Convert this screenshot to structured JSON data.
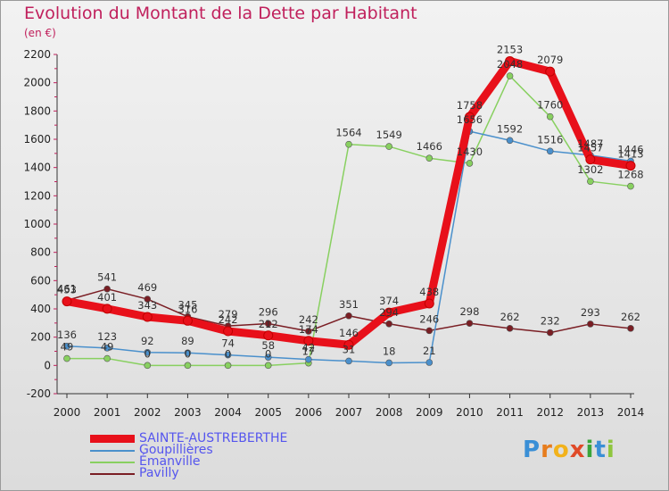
{
  "title": "Evolution du Montant de la Dette par Habitant",
  "unit": "(en €)",
  "brand": {
    "letters": [
      "P",
      "r",
      "o",
      "x",
      "i",
      "t",
      "i"
    ],
    "colors": [
      "#3a8fd6",
      "#e77d1e",
      "#f2b21b",
      "#e04a28",
      "#3aa53a",
      "#3a8fd6",
      "#8fc63f"
    ]
  },
  "chart_data": {
    "type": "line",
    "x": [
      "2000",
      "2001",
      "2002",
      "2003",
      "2004",
      "2005",
      "2006",
      "2007",
      "2008",
      "2009",
      "2010",
      "2011",
      "2012",
      "2013",
      "2014"
    ],
    "ylim": [
      -200,
      2200
    ],
    "yticks": [
      "-200",
      "0",
      "200",
      "400",
      "600",
      "800",
      "1000",
      "1200",
      "1400",
      "1600",
      "1800",
      "2000",
      "2200"
    ],
    "grid": false,
    "legend": "bottom-left",
    "series": [
      {
        "name": "SAINTE-AUSTREBERTHE",
        "color": "#e8101a",
        "values": [
          453,
          401,
          343,
          316,
          242,
          212,
          174,
          146,
          374,
          438,
          1758,
          2153,
          2079,
          1457,
          1413
        ],
        "labels": [
          "453",
          "401",
          "343",
          "316",
          "242",
          "212",
          "174",
          "146",
          "374",
          "438",
          "1758",
          "2153",
          "2079",
          "1457",
          "1413"
        ]
      },
      {
        "name": "Goupillières",
        "color": "#4a90cc",
        "values": [
          136,
          123,
          92,
          89,
          74,
          58,
          42,
          31,
          18,
          21,
          1656,
          1592,
          1516,
          1487,
          1446
        ],
        "labels": [
          "136",
          "123",
          "92",
          "89",
          "74",
          "58",
          "42",
          "31",
          "18",
          "21",
          "1656",
          "1592",
          "1516",
          "1487",
          "1446"
        ]
      },
      {
        "name": "Émanville",
        "color": "#88d060",
        "values": [
          49,
          49,
          0,
          0,
          0,
          0,
          17,
          1564,
          1549,
          1466,
          1430,
          2048,
          1760,
          1302,
          1268
        ],
        "labels": [
          "49",
          "49",
          "0",
          "0",
          "0",
          "0",
          "17",
          "1564",
          "1549",
          "1466",
          "1430",
          "2048",
          "1760",
          "1302",
          "1268"
        ]
      },
      {
        "name": "Pavilly",
        "color": "#7a1e24",
        "values": [
          461,
          541,
          469,
          345,
          279,
          296,
          242,
          351,
          294,
          246,
          298,
          262,
          232,
          293,
          262
        ],
        "labels": [
          "461",
          "541",
          "469",
          "345",
          "279",
          "296",
          "242",
          "351",
          "294",
          "246",
          "298",
          "262",
          "232",
          "293",
          "262"
        ]
      }
    ]
  }
}
